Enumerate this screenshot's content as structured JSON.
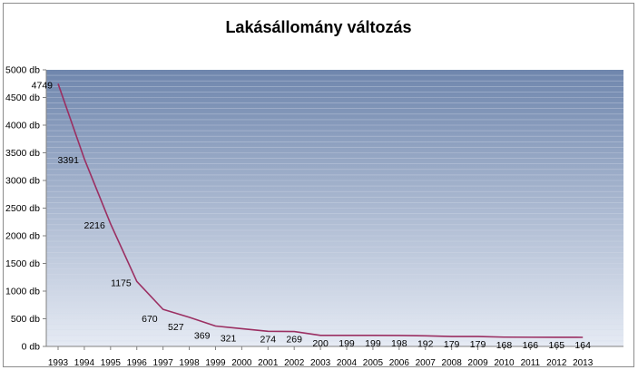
{
  "chart_data": {
    "type": "line",
    "title": "Lakásállomány változás",
    "categories": [
      "1993",
      "1994",
      "1995",
      "1996",
      "1997",
      "1998",
      "1999",
      "2000",
      "2001",
      "2002",
      "2003",
      "2004",
      "2005",
      "2006",
      "2007",
      "2008",
      "2009",
      "2010",
      "2011",
      "2012",
      "2013"
    ],
    "series": [
      {
        "values": [
          4749,
          3391,
          2216,
          1175,
          670,
          527,
          369,
          321,
          274,
          269,
          200,
          199,
          199,
          198,
          192,
          179,
          179,
          168,
          166,
          165,
          164
        ]
      }
    ],
    "data_labels": [
      "4749",
      "3391",
      "2216",
      "1175",
      "670",
      "527",
      "369",
      "321",
      "274",
      "269",
      "200",
      "199",
      "199",
      "198",
      "192",
      "179",
      "179",
      "168",
      "166",
      "165",
      "164"
    ],
    "y_tick_labels": [
      "0 db",
      "500 db",
      "1000 db",
      "1500 db",
      "2000 db",
      "2500 db",
      "3000 db",
      "3500 db",
      "4000 db",
      "4500 db",
      "5000 db"
    ],
    "y_ticks": [
      0,
      500,
      1000,
      1500,
      2000,
      2500,
      3000,
      3500,
      4000,
      4500,
      5000
    ],
    "ylim": [
      0,
      5000
    ],
    "xlabel": "",
    "ylabel": "",
    "grid": true,
    "legend": "none",
    "colors": {
      "line": "#9b2f62",
      "plot_top": "#6f86ad",
      "plot_bottom": "#e6ebf4",
      "grid": "#d5dcea",
      "axis": "#808080"
    }
  }
}
